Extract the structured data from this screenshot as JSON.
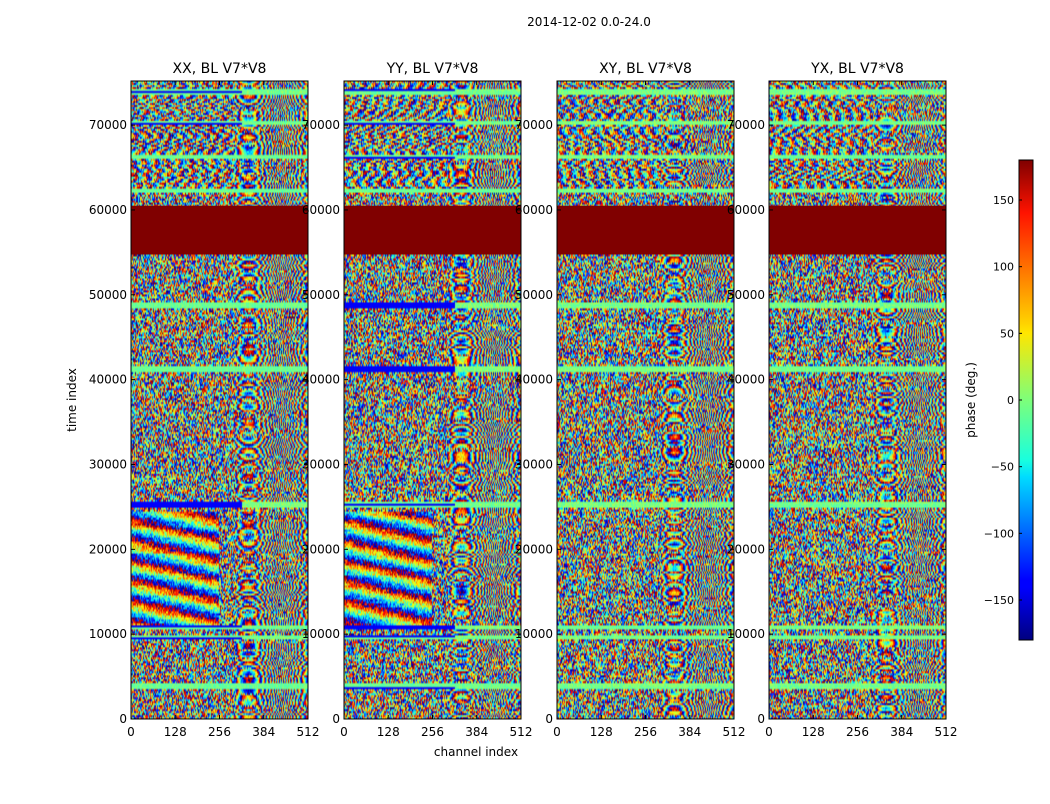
{
  "figure": {
    "suptitle": "2014-12-02 0.0-24.0",
    "xlabel": "channel index",
    "ylabel": "time index",
    "colorbar_label": "phase (deg.)"
  },
  "chart_data": {
    "type": "heatmap",
    "panels": [
      {
        "title": "XX, BL V7*V8",
        "pol": "XX"
      },
      {
        "title": "YY, BL V7*V8",
        "pol": "YY"
      },
      {
        "title": "XY, BL V7*V8",
        "pol": "XY"
      },
      {
        "title": "YX, BL V7*V8",
        "pol": "YX"
      }
    ],
    "x_ticks": [
      0,
      128,
      256,
      384,
      512
    ],
    "y_ticks": [
      0,
      10000,
      20000,
      30000,
      40000,
      50000,
      60000,
      70000
    ],
    "xlim": [
      0,
      512
    ],
    "ylim": [
      0,
      75200
    ],
    "colorbar": {
      "ticks": [
        -150,
        -100,
        -50,
        0,
        50,
        100,
        150
      ],
      "range": [
        -180,
        180
      ],
      "colormap": "jet"
    },
    "saturated_band": {
      "y_range": [
        54800,
        60500
      ],
      "value": 180
    },
    "flagged_bands": [
      [
        3500,
        4200
      ],
      [
        9300,
        9900
      ],
      [
        10500,
        11000
      ],
      [
        25000,
        25600
      ],
      [
        41000,
        41600
      ],
      [
        48500,
        49000
      ],
      [
        62000,
        62600
      ],
      [
        66000,
        66500
      ],
      [
        70000,
        70500
      ],
      [
        73500,
        74200
      ]
    ],
    "grid": false
  },
  "colors": {
    "saturated": "#800000",
    "frame": "#000000"
  }
}
